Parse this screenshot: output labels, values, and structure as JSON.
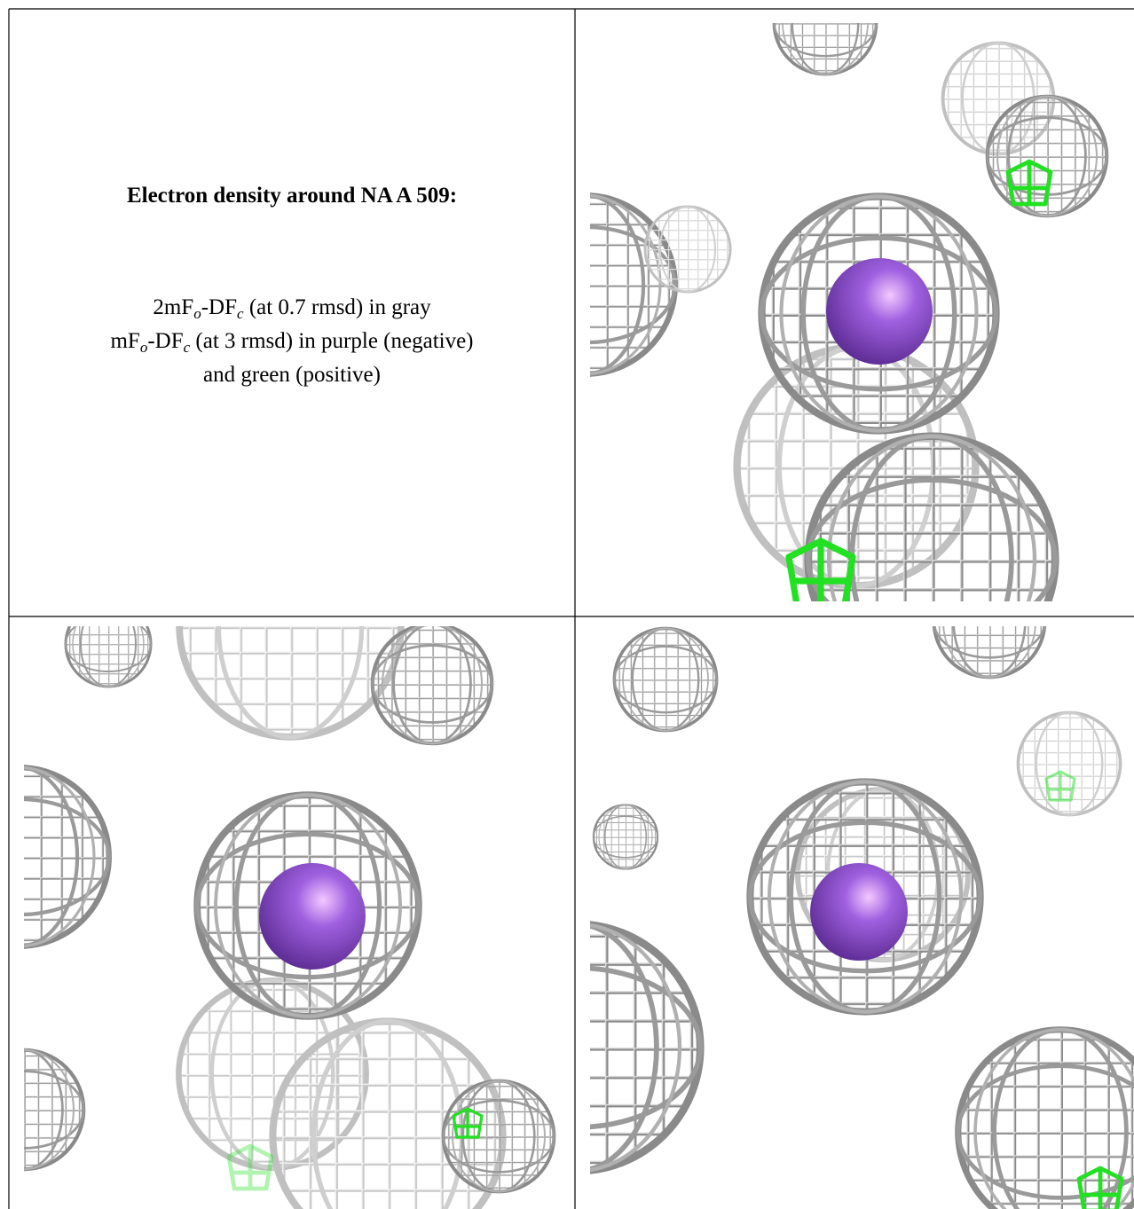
{
  "caption": {
    "title": "Electron density around NA A 509:",
    "lines": [
      {
        "parts": [
          {
            "text": "2mF"
          },
          {
            "text": "o",
            "sub": true
          },
          {
            "text": "-DF"
          },
          {
            "text": "c",
            "sub": true
          },
          {
            "text": " (at 0.7 rmsd) in gray"
          }
        ]
      },
      {
        "parts": [
          {
            "text": "mF"
          },
          {
            "text": "o",
            "sub": true
          },
          {
            "text": "-DF"
          },
          {
            "text": "c",
            "sub": true
          },
          {
            "text": " (at 3 rmsd) in purple (negative)"
          }
        ]
      },
      {
        "parts": [
          {
            "text": "and green (positive)"
          }
        ]
      }
    ]
  }
}
